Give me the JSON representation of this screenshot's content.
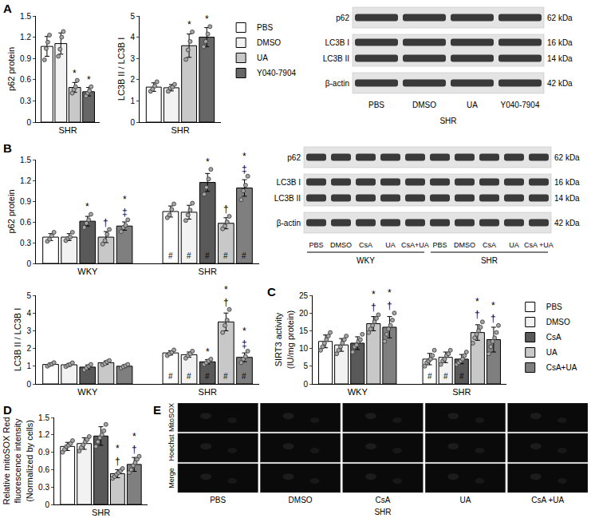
{
  "chart_data": [
    {
      "type": "bar",
      "panel": "A",
      "ylabel": "p62 protein",
      "groups": [
        "SHR"
      ],
      "ylim": [
        0,
        1.5
      ],
      "yticks": [
        0,
        0.3,
        0.6,
        0.9,
        1.2,
        1.5
      ],
      "series": [
        {
          "name": "PBS",
          "color": "#ffffff",
          "values": [
            1.07
          ],
          "errors": [
            0.14
          ],
          "points": [
            [
              0.88,
              1.04,
              1.13,
              1.23
            ]
          ],
          "marks": [
            []
          ],
          "base_marks": [
            null
          ]
        },
        {
          "name": "DMSO",
          "color": "#f2f2f2",
          "values": [
            1.11
          ],
          "errors": [
            0.15
          ],
          "points": [
            [
              0.93,
              1.03,
              1.2,
              1.28
            ]
          ],
          "marks": [
            []
          ],
          "base_marks": [
            null
          ]
        },
        {
          "name": "UA",
          "color": "#c8c8c8",
          "values": [
            0.49
          ],
          "errors": [
            0.07
          ],
          "points": [
            [
              0.41,
              0.46,
              0.5,
              0.59
            ]
          ],
          "marks": [
            [
              "*"
            ]
          ],
          "base_marks": [
            null
          ]
        },
        {
          "name": "Y040-7904",
          "color": "#666666",
          "values": [
            0.43
          ],
          "errors": [
            0.06
          ],
          "points": [
            [
              0.37,
              0.41,
              0.44,
              0.5
            ]
          ],
          "marks": [
            [
              "*"
            ]
          ],
          "base_marks": [
            null
          ]
        }
      ]
    },
    {
      "type": "bar",
      "ylabel": "LC3B II / LC3B I",
      "groups": [
        "SHR"
      ],
      "ylim": [
        0,
        5
      ],
      "yticks": [
        0,
        1,
        2,
        3,
        4,
        5
      ],
      "legend": "right",
      "series": [
        {
          "name": "PBS",
          "color": "#ffffff",
          "values": [
            1.65
          ],
          "errors": [
            0.2
          ],
          "points": [
            [
              1.45,
              1.55,
              1.7,
              1.9
            ]
          ],
          "marks": [
            []
          ],
          "base_marks": [
            null
          ]
        },
        {
          "name": "DMSO",
          "color": "#f2f2f2",
          "values": [
            1.62
          ],
          "errors": [
            0.15
          ],
          "points": [
            [
              1.45,
              1.6,
              1.65,
              1.78
            ]
          ],
          "marks": [
            []
          ],
          "base_marks": [
            null
          ]
        },
        {
          "name": "UA",
          "color": "#c8c8c8",
          "values": [
            3.6
          ],
          "errors": [
            0.55
          ],
          "points": [
            [
              2.95,
              3.4,
              3.8,
              4.25
            ]
          ],
          "marks": [
            [
              "*"
            ]
          ],
          "base_marks": [
            null
          ]
        },
        {
          "name": "Y040-7904",
          "color": "#666666",
          "values": [
            4.0
          ],
          "errors": [
            0.45
          ],
          "points": [
            [
              3.55,
              3.8,
              4.15,
              4.5
            ]
          ],
          "marks": [
            [
              "*"
            ]
          ],
          "base_marks": [
            null
          ]
        }
      ]
    },
    {
      "type": "bar",
      "panel": "B",
      "ylabel": "p62 protein",
      "groups": [
        "WKY",
        "SHR"
      ],
      "ylim": [
        0,
        1.5
      ],
      "yticks": [
        0,
        0.3,
        0.6,
        0.9,
        1.2,
        1.5
      ],
      "series": [
        {
          "name": "PBS",
          "color": "#ffffff",
          "values": [
            0.38,
            0.75
          ],
          "errors": [
            0.05,
            0.08
          ],
          "points": [
            [
              0.32,
              0.35,
              0.4,
              0.45
            ],
            [
              0.66,
              0.7,
              0.78,
              0.86
            ]
          ],
          "marks": [
            [],
            []
          ],
          "base_marks": [
            null,
            "#"
          ]
        },
        {
          "name": "DMSO",
          "color": "#f2f2f2",
          "values": [
            0.38,
            0.74
          ],
          "errors": [
            0.05,
            0.1
          ],
          "points": [
            [
              0.33,
              0.36,
              0.38,
              0.45
            ],
            [
              0.62,
              0.7,
              0.77,
              0.87
            ]
          ],
          "marks": [
            [],
            []
          ],
          "base_marks": [
            null,
            "#"
          ]
        },
        {
          "name": "CsA",
          "color": "#595959",
          "values": [
            0.61,
            1.17
          ],
          "errors": [
            0.07,
            0.13
          ],
          "points": [
            [
              0.52,
              0.58,
              0.63,
              0.71
            ],
            [
              1.0,
              1.1,
              1.22,
              1.36
            ]
          ],
          "marks": [
            [
              "*"
            ],
            [
              "*"
            ]
          ],
          "base_marks": [
            null,
            "#"
          ]
        },
        {
          "name": "UA",
          "color": "#c8c8c8",
          "values": [
            0.38,
            0.58
          ],
          "errors": [
            0.08,
            0.08
          ],
          "points": [
            [
              0.28,
              0.33,
              0.42,
              0.49
            ],
            [
              0.5,
              0.54,
              0.6,
              0.68
            ]
          ],
          "marks": [
            [
              "†"
            ],
            [
              "†"
            ]
          ],
          "base_marks": [
            null,
            "#"
          ]
        },
        {
          "name": "CsA+UA",
          "color": "#7f7f7f",
          "values": [
            0.54,
            1.09
          ],
          "errors": [
            0.06,
            0.12
          ],
          "points": [
            [
              0.46,
              0.52,
              0.55,
              0.63
            ],
            [
              0.92,
              1.05,
              1.13,
              1.26
            ]
          ],
          "marks": [
            [
              "*",
              "‡"
            ],
            [
              "*",
              "‡"
            ]
          ],
          "base_marks": [
            null,
            "#"
          ]
        }
      ]
    },
    {
      "type": "bar",
      "ylabel": "LC3B II / LC3B I",
      "groups": [
        "WKY",
        "SHR"
      ],
      "ylim": [
        0,
        5
      ],
      "yticks": [
        0,
        1,
        2,
        3,
        4,
        5
      ],
      "series": [
        {
          "name": "PBS",
          "color": "#ffffff",
          "values": [
            1.1,
            1.75
          ],
          "errors": [
            0.08,
            0.12
          ],
          "points": [
            [
              1.0,
              1.08,
              1.12,
              1.2
            ],
            [
              1.6,
              1.7,
              1.78,
              1.92
            ]
          ],
          "marks": [
            [],
            []
          ],
          "base_marks": [
            null,
            "#"
          ]
        },
        {
          "name": "DMSO",
          "color": "#f2f2f2",
          "values": [
            1.08,
            1.65
          ],
          "errors": [
            0.08,
            0.15
          ],
          "points": [
            [
              0.98,
              1.05,
              1.1,
              1.19
            ],
            [
              1.45,
              1.6,
              1.7,
              1.85
            ]
          ],
          "marks": [
            [],
            []
          ],
          "base_marks": [
            null,
            "#"
          ]
        },
        {
          "name": "CsA",
          "color": "#595959",
          "values": [
            0.95,
            1.25
          ],
          "errors": [
            0.12,
            0.12
          ],
          "points": [
            [
              0.8,
              0.9,
              1.0,
              1.1
            ],
            [
              1.1,
              1.2,
              1.3,
              1.4
            ]
          ],
          "marks": [
            [],
            [
              "*"
            ]
          ],
          "base_marks": [
            null,
            "#"
          ]
        },
        {
          "name": "UA",
          "color": "#c8c8c8",
          "values": [
            1.2,
            3.5
          ],
          "errors": [
            0.1,
            0.5
          ],
          "points": [
            [
              1.08,
              1.15,
              1.25,
              1.32
            ],
            [
              2.9,
              3.3,
              3.6,
              4.2
            ]
          ],
          "marks": [
            [],
            [
              "*",
              "†"
            ]
          ],
          "base_marks": [
            null,
            "#"
          ]
        },
        {
          "name": "CsA+UA",
          "color": "#7f7f7f",
          "values": [
            1.0,
            1.5
          ],
          "errors": [
            0.08,
            0.25
          ],
          "points": [
            [
              0.9,
              0.97,
              1.03,
              1.1
            ],
            [
              1.2,
              1.4,
              1.55,
              1.85
            ]
          ],
          "marks": [
            [],
            [
              "*",
              "‡"
            ]
          ],
          "base_marks": [
            null,
            "#"
          ]
        }
      ]
    },
    {
      "type": "bar",
      "panel": "C",
      "ylabel": [
        "SIRT3 activity",
        "(IU/mg protein)"
      ],
      "groups": [
        "WKY",
        "SHR"
      ],
      "ylim": [
        0,
        25
      ],
      "yticks": [
        0,
        5,
        10,
        15,
        20,
        25
      ],
      "legend": "right",
      "series": [
        {
          "name": "PBS",
          "color": "#ffffff",
          "values": [
            12,
            7
          ],
          "errors": [
            1.8,
            1.6
          ],
          "points": [
            [
              9.5,
              10.5,
              11.5,
              12.5,
              13.5,
              14.5
            ],
            [
              5,
              6,
              6.5,
              7,
              8,
              9.5
            ]
          ],
          "marks": [
            [],
            []
          ],
          "base_marks": [
            null,
            "#"
          ]
        },
        {
          "name": "DMSO",
          "color": "#f2f2f2",
          "values": [
            11,
            7.5
          ],
          "errors": [
            1.8,
            1.5
          ],
          "points": [
            [
              8.5,
              9.5,
              10.5,
              11.5,
              12.5,
              13.5
            ],
            [
              5.5,
              6.5,
              7,
              8,
              8.5,
              9.5
            ]
          ],
          "marks": [
            [],
            []
          ],
          "base_marks": [
            null,
            "#"
          ]
        },
        {
          "name": "CsA",
          "color": "#595959",
          "values": [
            11.5,
            7
          ],
          "errors": [
            1.8,
            1.3
          ],
          "points": [
            [
              9,
              10.5,
              11,
              12,
              12.5,
              14
            ],
            [
              5.5,
              6,
              6.5,
              7,
              8,
              9
            ]
          ],
          "marks": [
            [],
            []
          ],
          "base_marks": [
            null,
            "#"
          ]
        },
        {
          "name": "UA",
          "color": "#c8c8c8",
          "values": [
            17,
            14.5
          ],
          "errors": [
            2,
            2.2
          ],
          "points": [
            [
              14.5,
              15.5,
              16.5,
              17.5,
              18.5,
              19.5
            ],
            [
              11.5,
              13,
              14,
              15,
              16,
              17.5
            ]
          ],
          "marks": [
            [
              "*",
              "†"
            ],
            [
              "*",
              "†"
            ]
          ],
          "base_marks": [
            null,
            null
          ]
        },
        {
          "name": "CsA+UA",
          "color": "#7f7f7f",
          "values": [
            16,
            12.5
          ],
          "errors": [
            3,
            3.5
          ],
          "points": [
            [
              12,
              14,
              15.5,
              16.5,
              18,
              20
            ],
            [
              8.5,
              10.5,
              12,
              13,
              14.5,
              16.5
            ]
          ],
          "marks": [
            [
              "*",
              "†"
            ],
            [
              "*",
              "†"
            ]
          ],
          "base_marks": [
            null,
            null
          ]
        }
      ]
    },
    {
      "type": "bar",
      "panel": "D",
      "ylabel": [
        "Relative mitoSOX Red",
        "fluorescence intensity",
        "(Normalized by cells)"
      ],
      "groups": [
        "SHR"
      ],
      "ylim": [
        0,
        1.5
      ],
      "yticks": [
        0,
        0.3,
        0.6,
        0.9,
        1.2,
        1.5
      ],
      "series": [
        {
          "name": "PBS",
          "color": "#ffffff",
          "values": [
            1.0
          ],
          "errors": [
            0.07
          ],
          "points": [
            [
              0.9,
              0.95,
              1.0,
              1.02,
              1.05,
              1.1
            ]
          ],
          "marks": [
            []
          ],
          "base_marks": [
            null
          ]
        },
        {
          "name": "DMSO",
          "color": "#f2f2f2",
          "values": [
            1.05
          ],
          "errors": [
            0.1
          ],
          "points": [
            [
              0.92,
              0.98,
              1.03,
              1.08,
              1.12,
              1.17
            ]
          ],
          "marks": [
            []
          ],
          "base_marks": [
            null
          ]
        },
        {
          "name": "CsA",
          "color": "#595959",
          "values": [
            1.18
          ],
          "errors": [
            0.16
          ],
          "points": [
            [
              1.0,
              1.08,
              1.15,
              1.2,
              1.27,
              1.38
            ]
          ],
          "marks": [
            []
          ],
          "base_marks": [
            null
          ]
        },
        {
          "name": "UA",
          "color": "#c8c8c8",
          "values": [
            0.53
          ],
          "errors": [
            0.07
          ],
          "points": [
            [
              0.45,
              0.48,
              0.52,
              0.55,
              0.58,
              0.62
            ]
          ],
          "marks": [
            [
              "*",
              "†"
            ]
          ],
          "base_marks": [
            null
          ]
        },
        {
          "name": "CsA+UA",
          "color": "#7f7f7f",
          "values": [
            0.69
          ],
          "errors": [
            0.12
          ],
          "points": [
            [
              0.55,
              0.6,
              0.67,
              0.72,
              0.78,
              0.83
            ]
          ],
          "marks": [
            [
              "*",
              "†"
            ]
          ],
          "base_marks": [
            null
          ]
        }
      ]
    }
  ],
  "blots": [
    {
      "rows": [
        {
          "label": "p62",
          "kda": "62 kDa"
        },
        {
          "label": [
            "LC3B I",
            "LC3B II"
          ],
          "kda": [
            "16 kDa",
            "14 kDa"
          ]
        },
        {
          "label": "β-actin",
          "kda": "42 kDa"
        }
      ],
      "lanes": [
        "PBS",
        "DMSO",
        "UA",
        "Y040-7904"
      ],
      "groups": [
        {
          "label": "SHR",
          "span": 4
        }
      ]
    },
    {
      "rows": [
        {
          "label": "p62",
          "kda": "62 kDa"
        },
        {
          "label": [
            "LC3B I",
            "LC3B II"
          ],
          "kda": [
            "16 kDa",
            "14 kDa"
          ]
        },
        {
          "label": "β-actin",
          "kda": "42 kDa"
        }
      ],
      "lanes": [
        "PBS",
        "DMSO",
        "CsA",
        "UA",
        "CsA+UA",
        "PBS",
        "DMSO",
        "CsA",
        "UA",
        "CsA +UA"
      ],
      "groups": [
        {
          "label": "WKY",
          "span": 5
        },
        {
          "label": "SHR",
          "span": 5
        }
      ]
    }
  ],
  "micrographs": {
    "panel": "E",
    "rows": [
      "MitoSOX",
      "Hoechst",
      "Merge"
    ],
    "columns": [
      "PBS",
      "DMSO",
      "CsA",
      "UA",
      "CsA +UA"
    ],
    "group": "SHR"
  }
}
